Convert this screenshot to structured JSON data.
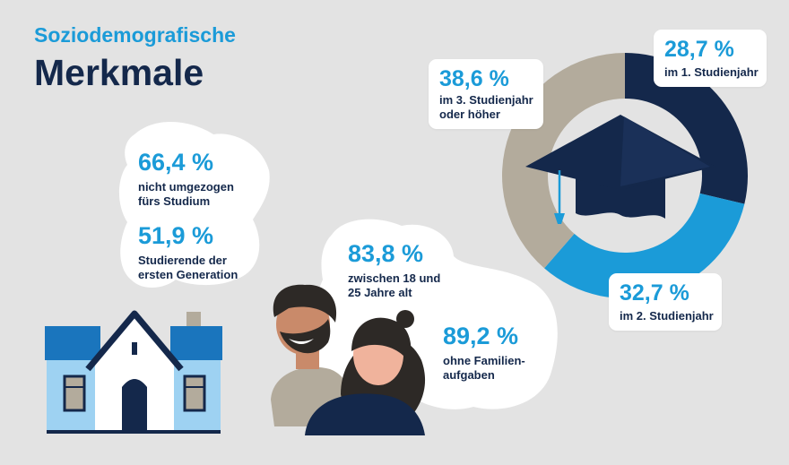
{
  "header": {
    "subtitle": "Soziodemografische",
    "title": "Merkmale"
  },
  "house_cloud": {
    "stat1": {
      "value": "66,4 %",
      "label_line1": "nicht umgezogen",
      "label_line2": "fürs Studium"
    },
    "stat2": {
      "value": "51,9 %",
      "label_line1": "Studierende der",
      "label_line2": "ersten Generation"
    }
  },
  "people_cloud": {
    "stat1": {
      "value": "83,8 %",
      "label_line1": "zwischen 18 und",
      "label_line2": "25 Jahre alt"
    },
    "stat2": {
      "value": "89,2 %",
      "label_line1": "ohne Familien-",
      "label_line2": "aufgaben"
    }
  },
  "chart_data": {
    "type": "pie",
    "categories": [
      "im 1. Studienjahr",
      "im 2. Studienjahr",
      "im 3. Studienjahr oder höher"
    ],
    "values": [
      28.7,
      32.7,
      38.6
    ],
    "colors": [
      "#14284b",
      "#1b9bd8",
      "#b3ab9c"
    ],
    "labels": [
      {
        "value": "28,7 %",
        "line1": "im 1. Studienjahr",
        "line2": ""
      },
      {
        "value": "32,7 %",
        "line1": "im 2. Studienjahr",
        "line2": ""
      },
      {
        "value": "38,6 %",
        "line1": "im 3. Studienjahr",
        "line2": "oder höher"
      }
    ]
  },
  "colors": {
    "navy": "#14284b",
    "accent_blue": "#1b9bd8",
    "beige": "#b3ab9c",
    "background": "#e3e3e3",
    "house_wall": "#9ed2f2",
    "house_roof": "#1a75bd"
  },
  "icons": [
    "house-icon",
    "graduation-cap-icon",
    "students-illustration"
  ]
}
